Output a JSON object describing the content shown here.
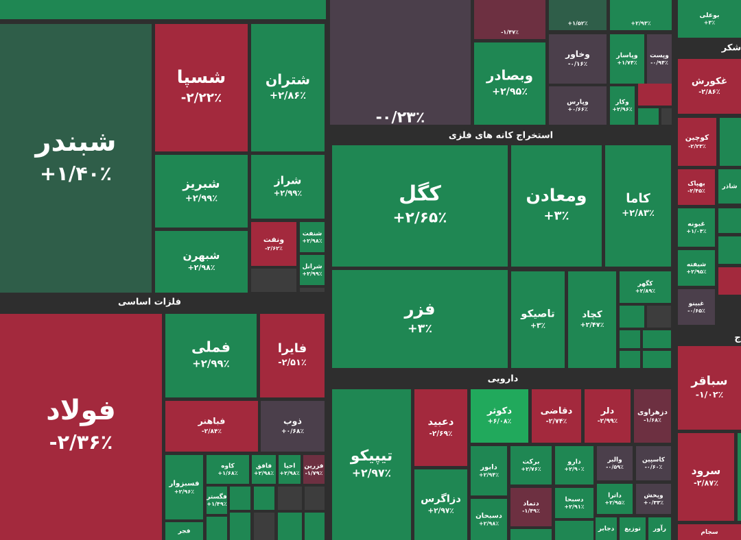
{
  "sections": [
    "فلزات اساسی",
    "استخراج کانه های فلزی",
    "دارویی",
    "شکر",
    "ج"
  ],
  "tiles": [
    {
      "name": "شبندر",
      "change": "+۱/۴۰٪"
    },
    {
      "name": "شسپا",
      "change": "-۲/۲۲٪"
    },
    {
      "name": "شتران",
      "change": "+۲/۸۶٪"
    },
    {
      "name": "شبریز",
      "change": "+۲/۹۹٪"
    },
    {
      "name": "شراز",
      "change": "+۲/۹۹٪"
    },
    {
      "name": "شبهرن",
      "change": "+۲/۹۸٪"
    },
    {
      "name": "ونفت",
      "change": "-۲/۶۲٪"
    },
    {
      "name": "شنفت",
      "change": "+۲/۹۸٪"
    },
    {
      "name": "شرانل",
      "change": "+۲/۹۹٪"
    },
    {
      "name": "فولاد",
      "change": "-۲/۳۶٪"
    },
    {
      "name": "فملی",
      "change": "+۲/۹۹٪"
    },
    {
      "name": "فایرا",
      "change": "-۲/۵۱٪"
    },
    {
      "name": "فباهنر",
      "change": "-۲/۸۴٪"
    },
    {
      "name": "ذوب",
      "change": "+۰/۶۸٪"
    },
    {
      "name": "فسبزوار",
      "change": "+۲/۹۶٪"
    },
    {
      "name": "کاوه",
      "change": "+۱/۶۸٪"
    },
    {
      "name": "فافق",
      "change": "+۲/۹۸٪"
    },
    {
      "name": "احیا",
      "change": "+۲/۹۸٪"
    },
    {
      "name": "فزرین",
      "change": "-۱/۷۹٪"
    },
    {
      "name": "فگستر",
      "change": "+۱/۴۹٪"
    },
    {
      "name": "فجر"
    },
    {
      "change": "-۰/۲۳٪"
    },
    {
      "change": "-۱/۴۷٪"
    },
    {
      "change": "+۱/۵۲٪"
    },
    {
      "change": "+۲/۹۳٪"
    },
    {
      "name": "وبصادر",
      "change": "+۲/۹۵٪"
    },
    {
      "name": "وخاور",
      "change": "-۰/۱۶٪"
    },
    {
      "name": "وپاسار",
      "change": "+۱/۷۴٪"
    },
    {
      "name": "وپست",
      "change": "-۰/۹۴٪"
    },
    {
      "name": "وپارس",
      "change": "+۰/۶۶٪"
    },
    {
      "name": "وکار",
      "change": "+۲/۹۶٪"
    },
    {
      "name": "کگل",
      "change": "+۲/۶۵٪"
    },
    {
      "name": "ومعادن",
      "change": "+۳٪"
    },
    {
      "name": "کاما",
      "change": "+۲/۸۳٪"
    },
    {
      "name": "فزر",
      "change": "+۳٪"
    },
    {
      "name": "تاصیکو",
      "change": "+۳٪"
    },
    {
      "name": "کچاد",
      "change": "+۲/۴۷٪"
    },
    {
      "name": "کگهر",
      "change": "+۲/۸۹٪"
    },
    {
      "name": "تیپیکو",
      "change": "+۲/۹۷٪"
    },
    {
      "name": "دعبید",
      "change": "-۲/۶۹٪"
    },
    {
      "name": "دکوثر",
      "change": "+۶/۰۸٪"
    },
    {
      "name": "دقاضی",
      "change": "-۲/۷۴٪"
    },
    {
      "name": "دلر",
      "change": "-۲/۹۹٪"
    },
    {
      "name": "دزهراوی",
      "change": "-۱/۶۸٪"
    },
    {
      "name": "دابور",
      "change": "+۲/۹۴٪"
    },
    {
      "name": "برکت",
      "change": "+۲/۷۶٪"
    },
    {
      "name": "دارو",
      "change": "+۲/۹۰٪"
    },
    {
      "name": "والبر",
      "change": "-۰/۵۹٪"
    },
    {
      "name": "کاسپین",
      "change": "-۰/۶۰٪"
    },
    {
      "name": "دزاگرس",
      "change": "+۲/۹۷٪"
    },
    {
      "name": "دتماد",
      "change": "-۱/۴۹٪"
    },
    {
      "name": "دسبحا",
      "change": "+۲/۹۱٪"
    },
    {
      "name": "داترا",
      "change": "+۲/۹۵٪"
    },
    {
      "name": "وپخش",
      "change": "+۰/۳۳٪"
    },
    {
      "name": "دسبحان",
      "change": "+۲/۹۸٪"
    },
    {
      "name": "دجابر"
    },
    {
      "name": "توزیع"
    },
    {
      "name": "رآور"
    },
    {
      "name": "بوعلی",
      "change": "+۳٪"
    },
    {
      "name": "غکورش",
      "change": "-۲/۸۶٪"
    },
    {
      "name": "کوچین",
      "change": "-۲/۲۳٪"
    },
    {
      "name": "بهپاک",
      "change": "-۲/۴۵٪"
    },
    {
      "name": "شاذر"
    },
    {
      "name": "غبونه",
      "change": "+۱/۰۴٪"
    },
    {
      "name": "شیفته",
      "change": "+۲/۹۵٪"
    },
    {
      "name": "غبینو",
      "change": "-۰/۶۵٪"
    },
    {
      "name": "سباقر",
      "change": "-۱/۰۲٪"
    },
    {
      "name": "سرود",
      "change": "-۲/۸۷٪"
    },
    {
      "name": "سجام"
    }
  ]
}
